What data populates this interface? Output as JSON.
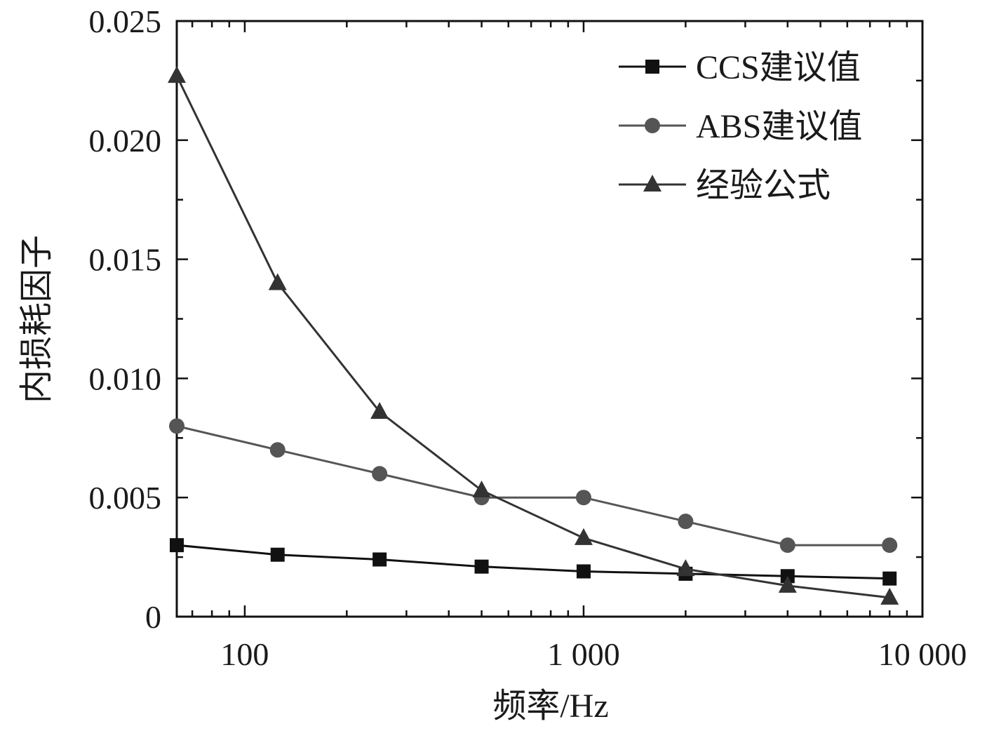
{
  "chart_data": {
    "type": "line",
    "x_scale": "log",
    "x": [
      63,
      125,
      250,
      500,
      1000,
      2000,
      4000,
      8000
    ],
    "xlim": [
      63,
      10000
    ],
    "ylim": [
      0,
      0.025
    ],
    "xlabel": "频率/Hz",
    "ylabel": "内损耗因子",
    "x_ticks": [
      {
        "value": 100,
        "label": "100"
      },
      {
        "value": 1000,
        "label": "1 000"
      },
      {
        "value": 10000,
        "label": "10 000"
      }
    ],
    "y_ticks": [
      {
        "value": 0,
        "label": "0"
      },
      {
        "value": 0.005,
        "label": "0.005"
      },
      {
        "value": 0.01,
        "label": "0.010"
      },
      {
        "value": 0.015,
        "label": "0.015"
      },
      {
        "value": 0.02,
        "label": "0.020"
      },
      {
        "value": 0.025,
        "label": "0.025"
      }
    ],
    "grid": false,
    "legend_position": "top-right",
    "series": [
      {
        "name": "CCS建议值",
        "marker": "square",
        "color": "#111111",
        "values": [
          0.003,
          0.0026,
          0.0024,
          0.0021,
          0.0019,
          0.0018,
          0.0017,
          0.0016
        ]
      },
      {
        "name": "ABS建议值",
        "marker": "circle",
        "color": "#555555",
        "values": [
          0.008,
          0.007,
          0.006,
          0.005,
          0.005,
          0.004,
          0.003,
          0.003
        ]
      },
      {
        "name": "经验公式",
        "marker": "triangle",
        "color": "#333333",
        "values": [
          0.0227,
          0.014,
          0.0086,
          0.0053,
          0.0033,
          0.002,
          0.0013,
          0.0008
        ]
      }
    ]
  }
}
